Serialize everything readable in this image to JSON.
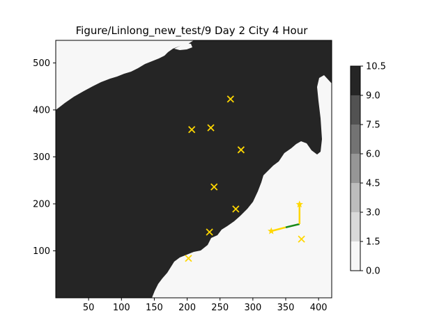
{
  "chart_data": {
    "type": "scatter",
    "title": "Figure/Linlong_new_test/9 Day 2 City 4 Hour",
    "xlim": [
      0,
      420
    ],
    "ylim": [
      0,
      548
    ],
    "x_ticks": [
      50,
      100,
      150,
      200,
      250,
      300,
      350,
      400
    ],
    "y_ticks": [
      100,
      200,
      300,
      400,
      500
    ],
    "grid": false,
    "background": {
      "type": "filled-contour",
      "description": "land (dark) vs sea (light) map"
    },
    "colorbar": {
      "levels": [
        0.0,
        1.5,
        3.0,
        4.5,
        6.0,
        7.5,
        9.0,
        10.5
      ],
      "tick_labels": [
        "0.0",
        "1.5",
        "3.0",
        "4.5",
        "6.0",
        "7.5",
        "9.0",
        "10.5"
      ],
      "colors": [
        "#f7f7f7",
        "#d9d9d9",
        "#bdbdbd",
        "#969696",
        "#737373",
        "#525252",
        "#252525"
      ]
    },
    "cities": {
      "marker": "x",
      "color": "#ffd700",
      "points": [
        {
          "x": 266,
          "y": 423
        },
        {
          "x": 207,
          "y": 358
        },
        {
          "x": 236,
          "y": 362
        },
        {
          "x": 282,
          "y": 315
        },
        {
          "x": 241,
          "y": 236
        },
        {
          "x": 274,
          "y": 189
        },
        {
          "x": 234,
          "y": 140
        },
        {
          "x": 374,
          "y": 125
        },
        {
          "x": 202,
          "y": 84
        }
      ]
    },
    "path": {
      "start_marker": "star",
      "end_marker": "star",
      "start": {
        "x": 328,
        "y": 142
      },
      "end": {
        "x": 371,
        "y": 199
      },
      "segments": [
        {
          "color": "#ffd700",
          "points": [
            [
              328,
              142
            ],
            [
              350,
              150
            ]
          ]
        },
        {
          "color": "#1a8a1a",
          "points": [
            [
              350,
              150
            ],
            [
              371,
              157
            ]
          ]
        },
        {
          "color": "#ffd700",
          "points": [
            [
              371,
              157
            ],
            [
              371,
              199
            ]
          ]
        }
      ]
    }
  }
}
